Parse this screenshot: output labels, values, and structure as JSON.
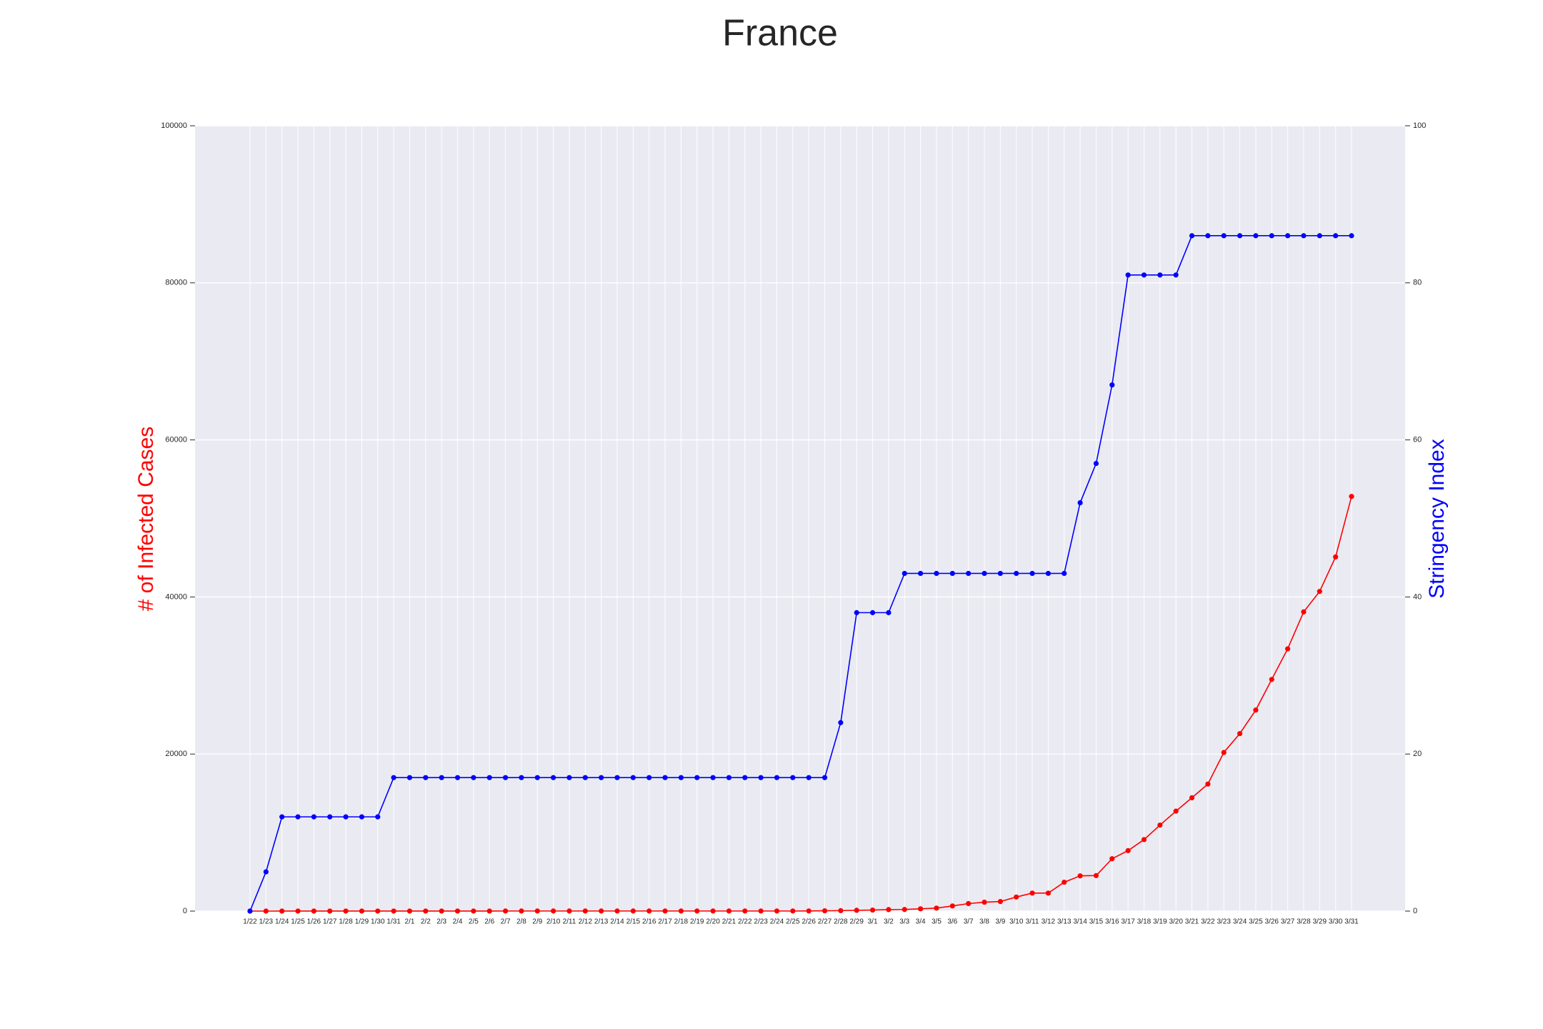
{
  "chart_data": {
    "type": "line",
    "title": "France",
    "y_label": "# of Infected Cases",
    "y2_label": "Stringency Index",
    "categories": [
      "1/22",
      "1/23",
      "1/24",
      "1/25",
      "1/26",
      "1/27",
      "1/28",
      "1/29",
      "1/30",
      "1/31",
      "2/1",
      "2/2",
      "2/3",
      "2/4",
      "2/5",
      "2/6",
      "2/7",
      "2/8",
      "2/9",
      "2/10",
      "2/11",
      "2/12",
      "2/13",
      "2/14",
      "2/15",
      "2/16",
      "2/17",
      "2/18",
      "2/19",
      "2/20",
      "2/21",
      "2/22",
      "2/23",
      "2/24",
      "2/25",
      "2/26",
      "2/27",
      "2/28",
      "2/29",
      "3/1",
      "3/2",
      "3/3",
      "3/4",
      "3/5",
      "3/6",
      "3/7",
      "3/8",
      "3/9",
      "3/10",
      "3/11",
      "3/12",
      "3/13",
      "3/14",
      "3/15",
      "3/16",
      "3/17",
      "3/18",
      "3/19",
      "3/20",
      "3/21",
      "3/22",
      "3/23",
      "3/24",
      "3/25",
      "3/26",
      "3/27",
      "3/28",
      "3/29",
      "3/30",
      "3/31"
    ],
    "series": [
      {
        "name": "# of Infected Cases",
        "color": "#ff0000",
        "axis": "y",
        "values": [
          0,
          0,
          2,
          3,
          3,
          3,
          4,
          5,
          5,
          5,
          6,
          6,
          6,
          6,
          6,
          6,
          11,
          11,
          11,
          11,
          11,
          11,
          11,
          11,
          12,
          12,
          12,
          12,
          12,
          12,
          12,
          12,
          12,
          12,
          12,
          18,
          38,
          57,
          100,
          130,
          191,
          204,
          288,
          380,
          656,
          957,
          1134,
          1217,
          1792,
          2290,
          2290,
          3678,
          4487,
          4523,
          6668,
          7699,
          9105,
          10947,
          12726,
          14431,
          16176,
          20200,
          22600,
          25600,
          29500,
          33400,
          38100,
          40700,
          45100,
          52800
        ]
      },
      {
        "name": "Stringency Index",
        "color": "#0000ff",
        "axis": "y2",
        "values": [
          0,
          5,
          12,
          12,
          12,
          12,
          12,
          12,
          12,
          17,
          17,
          17,
          17,
          17,
          17,
          17,
          17,
          17,
          17,
          17,
          17,
          17,
          17,
          17,
          17,
          17,
          17,
          17,
          17,
          17,
          17,
          17,
          17,
          17,
          17,
          17,
          17,
          24,
          38,
          38,
          38,
          43,
          43,
          43,
          43,
          43,
          43,
          43,
          43,
          43,
          43,
          43,
          52,
          57,
          67,
          81,
          81,
          81,
          81,
          86,
          86,
          86,
          86,
          86,
          86,
          86,
          86,
          86,
          86,
          86
        ]
      }
    ],
    "ylim": [
      0,
      100000
    ],
    "yticks": [
      0,
      20000,
      40000,
      60000,
      80000,
      100000
    ],
    "y2lim": [
      0,
      100
    ],
    "y2ticks": [
      0,
      20,
      40,
      60,
      80,
      100
    ],
    "grid": true
  }
}
